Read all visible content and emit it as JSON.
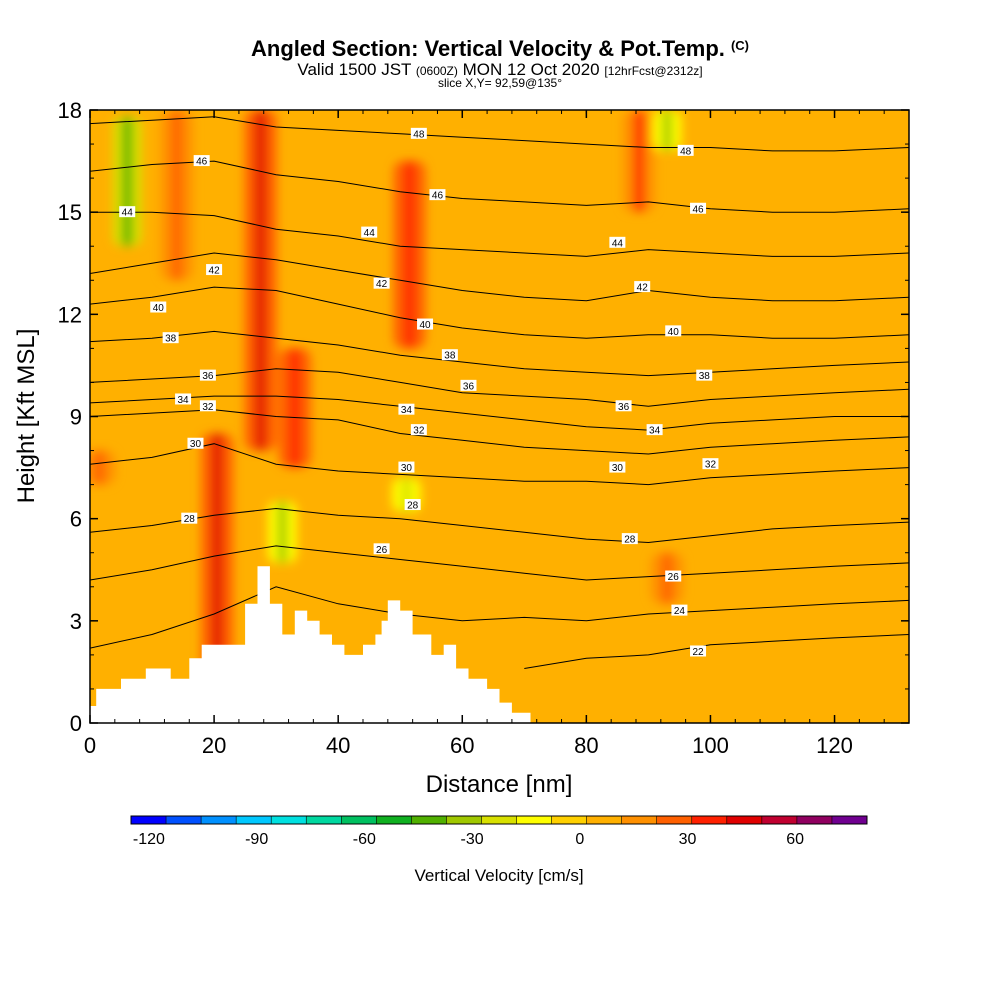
{
  "title": "Angled Section: Vertical Velocity & Pot.Temp.",
  "title_units": "(C)",
  "subtitle_prefix": "Valid 1500 JST",
  "subtitle_utc": "(0600Z)",
  "subtitle_date": "MON 12 Oct 2020",
  "subtitle_run": "[12hrFcst@2312z]",
  "slice": "slice X,Y= 92,59@135°",
  "chart_data": {
    "type": "heatmap",
    "xlabel": "Distance [nm]",
    "ylabel": "Height [Kft MSL]",
    "xlim": [
      0,
      132
    ],
    "ylim": [
      0,
      18
    ],
    "x_ticks": [
      0,
      20,
      40,
      60,
      80,
      100,
      120
    ],
    "y_ticks": [
      0,
      3,
      6,
      9,
      12,
      15,
      18
    ],
    "colorbar": {
      "title": "Vertical Velocity [cm/s]",
      "ticks": [
        -120,
        -90,
        -60,
        -30,
        0,
        30,
        60
      ],
      "min": -125,
      "max": 80,
      "colors": [
        "#0000ff",
        "#0050ff",
        "#0090ff",
        "#00c8ff",
        "#00e0e0",
        "#00d8a0",
        "#00c060",
        "#10b020",
        "#50b000",
        "#a0c800",
        "#d8e000",
        "#ffff00",
        "#ffd000",
        "#ffb000",
        "#ff9000",
        "#ff6000",
        "#ff2000",
        "#e00000",
        "#c00030",
        "#900060",
        "#700090"
      ]
    },
    "background_velocity": 5,
    "updraft_plumes": [
      {
        "x": 20.5,
        "y_from": 1.5,
        "y_to": 8.5,
        "velocity": 50
      },
      {
        "x": 27.5,
        "y_from": 8.0,
        "y_to": 18.0,
        "velocity": 50
      },
      {
        "x": 33.0,
        "y_from": 7.5,
        "y_to": 11.0,
        "velocity": 40
      },
      {
        "x": 14.0,
        "y_from": 13.0,
        "y_to": 18.0,
        "velocity": 30
      },
      {
        "x": 51.5,
        "y_from": 11.0,
        "y_to": 16.5,
        "velocity": 40
      },
      {
        "x": 88.5,
        "y_from": 15.0,
        "y_to": 18.0,
        "velocity": 35
      },
      {
        "x": 1.5,
        "y_from": 7.0,
        "y_to": 8.0,
        "velocity": 30
      },
      {
        "x": 93.0,
        "y_from": 3.5,
        "y_to": 5.0,
        "velocity": 30
      }
    ],
    "downdraft_zones": [
      {
        "x": 6.0,
        "y_from": 14.0,
        "y_to": 17.8,
        "velocity": -40
      },
      {
        "x": 93.0,
        "y_from": 16.8,
        "y_to": 18.0,
        "velocity": -30
      },
      {
        "x": 31.0,
        "y_from": 4.7,
        "y_to": 6.5,
        "velocity": -30
      },
      {
        "x": 51.0,
        "y_from": 6.2,
        "y_to": 7.2,
        "velocity": -25
      }
    ],
    "terrain": {
      "x": [
        0,
        1,
        1,
        5,
        5,
        9,
        9,
        13,
        13,
        16,
        16,
        18,
        18,
        20,
        20,
        25,
        25,
        27,
        27,
        29,
        29,
        31,
        31,
        33,
        33,
        35,
        35,
        37,
        37,
        39,
        39,
        41,
        41,
        44,
        44,
        46,
        46,
        47,
        47,
        48,
        48,
        50,
        50,
        52,
        52,
        55,
        55,
        57,
        57,
        59,
        59,
        61,
        61,
        64,
        64,
        66,
        66,
        68,
        68,
        71,
        71,
        73,
        73
      ],
      "height": [
        0.5,
        0.5,
        1.0,
        1.0,
        1.3,
        1.3,
        1.6,
        1.6,
        1.3,
        1.3,
        1.9,
        1.9,
        2.3,
        2.3,
        2.3,
        2.3,
        3.5,
        3.5,
        4.6,
        4.6,
        3.5,
        3.5,
        2.6,
        2.6,
        3.3,
        3.3,
        3.0,
        3.0,
        2.6,
        2.6,
        2.3,
        2.3,
        2.0,
        2.0,
        2.3,
        2.3,
        2.6,
        2.6,
        3.0,
        3.0,
        3.6,
        3.6,
        3.3,
        3.3,
        2.6,
        2.6,
        2.0,
        2.0,
        2.3,
        2.3,
        1.6,
        1.6,
        1.3,
        1.3,
        1.0,
        1.0,
        0.6,
        0.6,
        0.3,
        0.3,
        0.0,
        0.0,
        0.0
      ]
    },
    "isentrope_x": [
      0,
      10,
      20,
      30,
      40,
      50,
      60,
      70,
      80,
      90,
      100,
      110,
      120,
      132
    ],
    "isentropes": [
      {
        "theta": 22,
        "heights": [
          null,
          null,
          null,
          null,
          null,
          null,
          null,
          1.6,
          1.9,
          2.0,
          2.3,
          2.4,
          2.5,
          2.6
        ]
      },
      {
        "theta": 24,
        "heights": [
          2.2,
          2.6,
          3.2,
          4.0,
          3.5,
          3.2,
          3.0,
          3.1,
          3.0,
          3.2,
          3.3,
          3.4,
          3.5,
          3.6
        ]
      },
      {
        "theta": 26,
        "heights": [
          4.2,
          4.5,
          4.9,
          5.2,
          5.0,
          4.8,
          4.6,
          4.4,
          4.2,
          4.3,
          4.4,
          4.5,
          4.6,
          4.7
        ]
      },
      {
        "theta": 28,
        "heights": [
          5.6,
          5.8,
          6.1,
          6.3,
          6.1,
          6.0,
          5.8,
          5.6,
          5.4,
          5.3,
          5.5,
          5.7,
          5.8,
          5.9
        ]
      },
      {
        "theta": 30,
        "heights": [
          7.6,
          7.8,
          8.2,
          7.6,
          7.4,
          7.3,
          7.2,
          7.1,
          7.1,
          7.0,
          7.2,
          7.3,
          7.4,
          7.5
        ]
      },
      {
        "theta": 32,
        "heights": [
          9.0,
          9.1,
          9.2,
          9.0,
          8.9,
          8.5,
          8.3,
          8.1,
          8.0,
          7.9,
          8.1,
          8.2,
          8.3,
          8.4
        ]
      },
      {
        "theta": 34,
        "heights": [
          9.4,
          9.5,
          9.6,
          9.6,
          9.5,
          9.3,
          9.1,
          8.9,
          8.7,
          8.6,
          8.8,
          8.9,
          9.0,
          9.0
        ]
      },
      {
        "theta": 36,
        "heights": [
          10.0,
          10.1,
          10.2,
          10.4,
          10.3,
          10.0,
          9.7,
          9.6,
          9.5,
          9.3,
          9.5,
          9.6,
          9.7,
          9.8
        ]
      },
      {
        "theta": 38,
        "heights": [
          11.2,
          11.3,
          11.5,
          11.3,
          11.1,
          10.8,
          10.6,
          10.4,
          10.3,
          10.2,
          10.3,
          10.4,
          10.5,
          10.6
        ]
      },
      {
        "theta": 40,
        "heights": [
          12.3,
          12.5,
          12.8,
          12.7,
          12.3,
          11.9,
          11.6,
          11.4,
          11.3,
          11.4,
          11.4,
          11.3,
          11.3,
          11.4
        ]
      },
      {
        "theta": 42,
        "heights": [
          13.2,
          13.5,
          13.8,
          13.6,
          13.3,
          13.0,
          12.7,
          12.5,
          12.4,
          12.7,
          12.5,
          12.4,
          12.4,
          12.5
        ]
      },
      {
        "theta": 44,
        "heights": [
          15.0,
          15.0,
          14.9,
          14.5,
          14.3,
          14.0,
          13.9,
          13.8,
          13.7,
          13.9,
          13.8,
          13.7,
          13.7,
          13.8
        ]
      },
      {
        "theta": 46,
        "heights": [
          16.2,
          16.4,
          16.5,
          16.1,
          15.9,
          15.6,
          15.4,
          15.3,
          15.2,
          15.3,
          15.1,
          15.0,
          15.0,
          15.1
        ]
      },
      {
        "theta": 48,
        "heights": [
          17.6,
          17.7,
          17.8,
          17.5,
          17.4,
          17.3,
          17.2,
          17.1,
          17.0,
          16.9,
          16.9,
          16.8,
          16.8,
          16.9
        ]
      }
    ],
    "isentrope_labels": [
      {
        "theta": 48,
        "x": 53,
        "y": 17.3
      },
      {
        "theta": 48,
        "x": 96,
        "y": 16.8
      },
      {
        "theta": 46,
        "x": 18,
        "y": 16.5
      },
      {
        "theta": 46,
        "x": 56,
        "y": 15.5
      },
      {
        "theta": 46,
        "x": 98,
        "y": 15.1
      },
      {
        "theta": 44,
        "x": 6,
        "y": 15.0
      },
      {
        "theta": 44,
        "x": 45,
        "y": 14.4
      },
      {
        "theta": 44,
        "x": 85,
        "y": 14.1
      },
      {
        "theta": 42,
        "x": 20,
        "y": 13.3
      },
      {
        "theta": 42,
        "x": 47,
        "y": 12.9
      },
      {
        "theta": 42,
        "x": 89,
        "y": 12.8
      },
      {
        "theta": 40,
        "x": 11,
        "y": 12.2
      },
      {
        "theta": 40,
        "x": 54,
        "y": 11.7
      },
      {
        "theta": 40,
        "x": 94,
        "y": 11.5
      },
      {
        "theta": 38,
        "x": 13,
        "y": 11.3
      },
      {
        "theta": 38,
        "x": 58,
        "y": 10.8
      },
      {
        "theta": 38,
        "x": 99,
        "y": 10.2
      },
      {
        "theta": 36,
        "x": 19,
        "y": 10.2
      },
      {
        "theta": 36,
        "x": 61,
        "y": 9.9
      },
      {
        "theta": 36,
        "x": 86,
        "y": 9.3
      },
      {
        "theta": 34,
        "x": 15,
        "y": 9.5
      },
      {
        "theta": 34,
        "x": 51,
        "y": 9.2
      },
      {
        "theta": 34,
        "x": 91,
        "y": 8.6
      },
      {
        "theta": 32,
        "x": 19,
        "y": 9.3
      },
      {
        "theta": 32,
        "x": 53,
        "y": 8.6
      },
      {
        "theta": 32,
        "x": 100,
        "y": 7.6
      },
      {
        "theta": 30,
        "x": 17,
        "y": 8.2
      },
      {
        "theta": 30,
        "x": 51,
        "y": 7.5
      },
      {
        "theta": 30,
        "x": 85,
        "y": 7.5
      },
      {
        "theta": 28,
        "x": 16,
        "y": 6.0
      },
      {
        "theta": 28,
        "x": 52,
        "y": 6.4
      },
      {
        "theta": 28,
        "x": 87,
        "y": 5.4
      },
      {
        "theta": 26,
        "x": 47,
        "y": 5.1
      },
      {
        "theta": 26,
        "x": 94,
        "y": 4.3
      },
      {
        "theta": 24,
        "x": 95,
        "y": 3.3
      },
      {
        "theta": 22,
        "x": 98,
        "y": 2.1
      }
    ]
  }
}
